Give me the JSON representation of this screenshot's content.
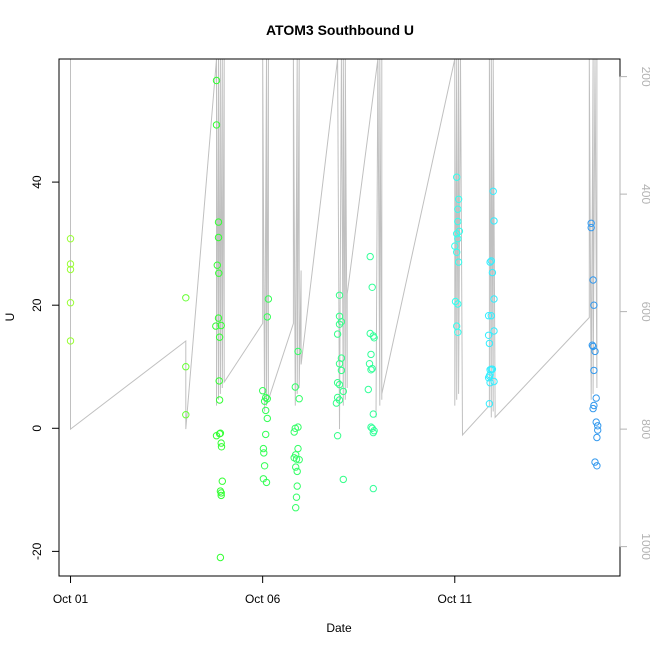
{
  "chart_data": {
    "type": "scatter",
    "title": "ATOM3 Southbound U",
    "xlabel": "Date",
    "ylabel": "U",
    "x_ticks": [
      "Oct 01",
      "Oct 06",
      "Oct 11"
    ],
    "x_tick_values": [
      0,
      5,
      10
    ],
    "xlim": [
      -0.3,
      14.3
    ],
    "y_ticks": [
      -20,
      0,
      20,
      40
    ],
    "ylim": [
      -24,
      60
    ],
    "y2_ticks": [
      200,
      400,
      600,
      800,
      1000
    ],
    "y2lim": [
      1050,
      170
    ],
    "y2_reversed": true,
    "grid": false,
    "point_style": "open-circle",
    "series": [
      {
        "color": "#99ff33",
        "points": [
          [
            0.0,
            30.8
          ],
          [
            0.0,
            26.7
          ],
          [
            0.0,
            25.8
          ],
          [
            0.0,
            20.4
          ],
          [
            0.0,
            14.2
          ]
        ]
      },
      {
        "color": "#66ff33",
        "points": [
          [
            3.0,
            21.2
          ],
          [
            3.0,
            10.0
          ],
          [
            3.0,
            2.2
          ]
        ]
      },
      {
        "color": "#33ff33",
        "points": [
          [
            3.8,
            56.5
          ],
          [
            3.8,
            49.3
          ],
          [
            3.85,
            33.5
          ],
          [
            3.85,
            31.0
          ],
          [
            3.82,
            26.5
          ],
          [
            3.86,
            25.2
          ],
          [
            3.85,
            17.9
          ],
          [
            3.92,
            16.7
          ],
          [
            3.78,
            16.6
          ],
          [
            3.88,
            14.8
          ],
          [
            3.87,
            7.7
          ],
          [
            3.88,
            4.6
          ],
          [
            3.8,
            -1.2
          ],
          [
            3.9,
            -0.8
          ],
          [
            3.88,
            -0.9
          ],
          [
            3.92,
            -2.4
          ],
          [
            3.93,
            -3.0
          ],
          [
            3.95,
            -8.6
          ],
          [
            3.9,
            -10.2
          ],
          [
            3.92,
            -10.5
          ],
          [
            3.92,
            -10.9
          ],
          [
            3.9,
            -21.0
          ]
        ]
      },
      {
        "color": "#33ff55",
        "points": [
          [
            5.15,
            21.0
          ],
          [
            5.12,
            18.1
          ],
          [
            5.0,
            6.1
          ],
          [
            5.08,
            5.0
          ],
          [
            5.12,
            4.8
          ],
          [
            5.05,
            4.4
          ],
          [
            5.08,
            2.9
          ],
          [
            5.12,
            1.6
          ],
          [
            5.08,
            -1.0
          ],
          [
            5.02,
            -3.3
          ],
          [
            5.03,
            -4.0
          ],
          [
            5.05,
            -6.1
          ],
          [
            5.02,
            -8.2
          ],
          [
            5.1,
            -8.8
          ]
        ]
      },
      {
        "color": "#33ff66",
        "points": [
          [
            5.92,
            12.5
          ],
          [
            5.85,
            6.7
          ],
          [
            5.95,
            4.8
          ],
          [
            5.85,
            0.0
          ],
          [
            5.92,
            0.2
          ],
          [
            5.82,
            -0.6
          ],
          [
            5.92,
            -3.3
          ],
          [
            5.86,
            -4.3
          ],
          [
            5.82,
            -4.8
          ],
          [
            5.88,
            -5.0
          ],
          [
            5.95,
            -5.1
          ],
          [
            5.86,
            -6.3
          ],
          [
            5.9,
            -7.0
          ],
          [
            5.9,
            -9.4
          ],
          [
            5.88,
            -11.2
          ],
          [
            5.86,
            -12.9
          ]
        ]
      },
      {
        "color": "#33ff88",
        "points": [
          [
            7.0,
            21.6
          ],
          [
            7.0,
            18.2
          ],
          [
            7.05,
            17.3
          ],
          [
            7.0,
            16.9
          ],
          [
            6.95,
            15.3
          ],
          [
            7.05,
            11.4
          ],
          [
            7.0,
            10.5
          ],
          [
            7.05,
            9.4
          ],
          [
            6.95,
            7.4
          ],
          [
            7.0,
            7.1
          ],
          [
            7.1,
            6.0
          ],
          [
            6.95,
            5.0
          ],
          [
            7.0,
            4.6
          ],
          [
            6.92,
            4.1
          ],
          [
            6.95,
            -1.2
          ],
          [
            7.1,
            -8.3
          ]
        ]
      },
      {
        "color": "#33ff99",
        "points": [
          [
            7.8,
            27.9
          ],
          [
            7.85,
            22.9
          ],
          [
            7.8,
            15.4
          ],
          [
            7.88,
            15.0
          ],
          [
            7.9,
            14.7
          ],
          [
            7.82,
            12.0
          ],
          [
            7.78,
            10.5
          ],
          [
            7.85,
            9.7
          ],
          [
            7.82,
            9.5
          ],
          [
            7.75,
            6.3
          ],
          [
            7.88,
            2.3
          ],
          [
            7.82,
            0.2
          ],
          [
            7.85,
            0.0
          ],
          [
            7.9,
            -0.4
          ],
          [
            7.88,
            -0.7
          ],
          [
            7.88,
            -9.8
          ]
        ]
      },
      {
        "color": "#33ffee",
        "points": [
          [
            10.05,
            40.8
          ],
          [
            10.1,
            37.2
          ],
          [
            10.08,
            35.6
          ],
          [
            10.08,
            33.6
          ],
          [
            10.12,
            32.0
          ],
          [
            10.05,
            31.6
          ],
          [
            10.08,
            30.8
          ],
          [
            10.0,
            29.6
          ],
          [
            10.05,
            28.6
          ],
          [
            10.1,
            27.0
          ],
          [
            10.02,
            20.6
          ],
          [
            10.08,
            20.2
          ],
          [
            10.05,
            16.6
          ],
          [
            10.08,
            15.6
          ]
        ]
      },
      {
        "color": "#33eeff",
        "points": [
          [
            11.0,
            38.5
          ],
          [
            11.02,
            33.7
          ],
          [
            10.95,
            27.2
          ],
          [
            10.92,
            27.0
          ],
          [
            10.98,
            25.3
          ],
          [
            11.02,
            21.0
          ],
          [
            10.95,
            18.3
          ],
          [
            10.88,
            18.3
          ],
          [
            10.88,
            15.1
          ],
          [
            10.9,
            13.8
          ],
          [
            10.92,
            9.5
          ],
          [
            10.95,
            9.6
          ],
          [
            10.98,
            9.6
          ],
          [
            10.92,
            8.7
          ],
          [
            10.9,
            8.5
          ],
          [
            10.88,
            8.2
          ],
          [
            10.92,
            7.4
          ],
          [
            11.02,
            7.6
          ],
          [
            10.9,
            4.0
          ],
          [
            11.02,
            15.8
          ]
        ]
      },
      {
        "color": "#3399ee",
        "points": [
          [
            13.55,
            33.3
          ],
          [
            13.55,
            32.6
          ],
          [
            13.6,
            24.1
          ],
          [
            13.62,
            20.0
          ],
          [
            13.58,
            13.5
          ],
          [
            13.6,
            13.3
          ],
          [
            13.65,
            12.5
          ],
          [
            13.62,
            9.4
          ],
          [
            13.68,
            4.9
          ],
          [
            13.62,
            3.7
          ],
          [
            13.6,
            3.2
          ],
          [
            13.68,
            1.0
          ],
          [
            13.72,
            0.4
          ],
          [
            13.72,
            -0.3
          ],
          [
            13.7,
            -1.5
          ],
          [
            13.65,
            -5.5
          ],
          [
            13.7,
            -6.1
          ]
        ]
      }
    ],
    "track": {
      "color": "#c0c0c0",
      "description_axis": "right",
      "polyline": [
        [
          0.0,
          170
        ],
        [
          0.0,
          800
        ],
        [
          3.0,
          650
        ],
        [
          3.0,
          800
        ],
        [
          3.8,
          170
        ],
        [
          3.8,
          760
        ],
        [
          3.85,
          170
        ],
        [
          3.85,
          750
        ],
        [
          3.9,
          170
        ],
        [
          3.9,
          740
        ],
        [
          3.95,
          170
        ],
        [
          3.95,
          730
        ],
        [
          4.0,
          170
        ],
        [
          4.0,
          720
        ],
        [
          5.0,
          620
        ],
        [
          5.0,
          170
        ],
        [
          5.05,
          770
        ],
        [
          5.1,
          170
        ],
        [
          5.1,
          760
        ],
        [
          5.15,
          170
        ],
        [
          5.15,
          750
        ],
        [
          5.8,
          620
        ],
        [
          5.8,
          170
        ],
        [
          5.85,
          760
        ],
        [
          5.9,
          170
        ],
        [
          5.9,
          740
        ],
        [
          5.95,
          170
        ],
        [
          5.95,
          730
        ],
        [
          6.0,
          530
        ],
        [
          6.0,
          690
        ],
        [
          6.95,
          170
        ],
        [
          7.0,
          800
        ],
        [
          7.05,
          170
        ],
        [
          7.1,
          760
        ],
        [
          7.1,
          170
        ],
        [
          7.15,
          750
        ],
        [
          7.15,
          170
        ],
        [
          7.2,
          730
        ],
        [
          7.2,
          570
        ],
        [
          8.0,
          170
        ],
        [
          7.95,
          780
        ],
        [
          8.0,
          170
        ],
        [
          8.05,
          760
        ],
        [
          8.05,
          170
        ],
        [
          8.1,
          750
        ],
        [
          8.1,
          170
        ],
        [
          8.1,
          740
        ],
        [
          10.0,
          170
        ],
        [
          10.0,
          760
        ],
        [
          10.05,
          170
        ],
        [
          10.05,
          750
        ],
        [
          10.1,
          170
        ],
        [
          10.1,
          740
        ],
        [
          10.15,
          170
        ],
        [
          10.2,
          810
        ],
        [
          10.9,
          760
        ],
        [
          10.9,
          170
        ],
        [
          10.95,
          780
        ],
        [
          10.95,
          170
        ],
        [
          11.0,
          770
        ],
        [
          11.0,
          170
        ],
        [
          11.05,
          760
        ],
        [
          11.05,
          780
        ],
        [
          13.5,
          610
        ],
        [
          13.5,
          170
        ],
        [
          13.55,
          750
        ],
        [
          13.6,
          170
        ],
        [
          13.6,
          740
        ],
        [
          13.65,
          170
        ],
        [
          13.7,
          730
        ],
        [
          13.7,
          170
        ]
      ]
    }
  }
}
